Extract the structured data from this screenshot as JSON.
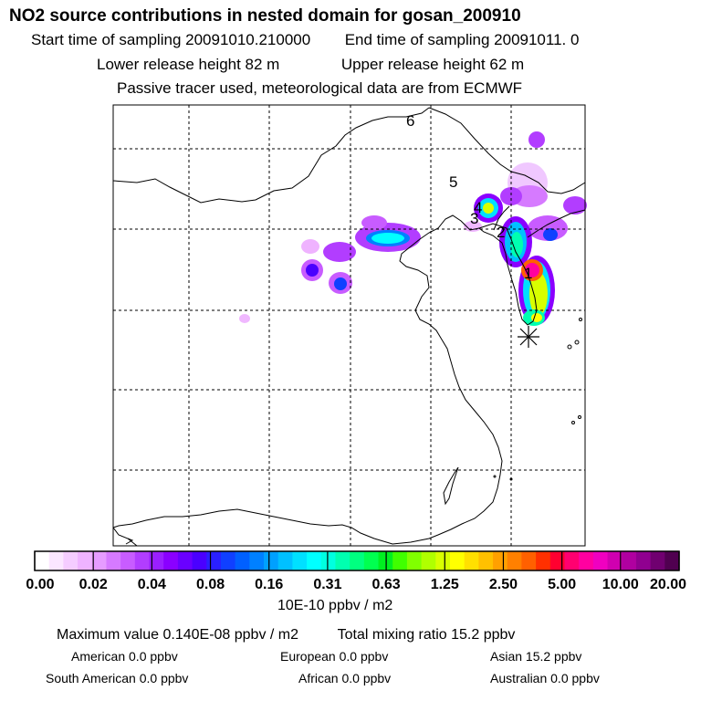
{
  "header": {
    "title": "NO2 source contributions in nested domain for gosan_200910",
    "start_label": "Start time of sampling 20091010.210000",
    "end_label": "End time of sampling 20091011.     0",
    "lower_release": "Lower release height   82 m",
    "upper_release": "Upper release height   62 m",
    "tracer_note": "Passive tracer used, meteorological data are from ECMWF"
  },
  "chart_data": {
    "type": "heatmap",
    "title": "NO2 source contributions in nested domain for gosan_200910",
    "colorbar": {
      "tick_labels": [
        "0.00",
        "0.02",
        "0.04",
        "0.08",
        "0.16",
        "0.31",
        "0.63",
        "1.25",
        "2.50",
        "5.00",
        "10.00",
        "20.00"
      ],
      "colors": [
        "#ffffff",
        "#fbe6ff",
        "#f5ccff",
        "#efb3ff",
        "#e69cff",
        "#d67aff",
        "#c85cff",
        "#b23dff",
        "#9a1fff",
        "#8a00ff",
        "#6a00ff",
        "#4a00ff",
        "#2a20ff",
        "#1040ff",
        "#0060ff",
        "#0080ff",
        "#00a0ff",
        "#00c0ff",
        "#00e0ff",
        "#00ffff",
        "#00ffe0",
        "#00ffb0",
        "#00ff80",
        "#00ff50",
        "#00f020",
        "#40ff00",
        "#80ff00",
        "#b0ff00",
        "#d8ff00",
        "#ffff00",
        "#ffe000",
        "#ffc000",
        "#ffa000",
        "#ff8000",
        "#ff6000",
        "#ff3000",
        "#ff0030",
        "#ff0070",
        "#ff00a0",
        "#f000c0",
        "#d000b0",
        "#b000a0",
        "#900090",
        "#700070",
        "#500050"
      ],
      "units": "10E-10 ppbv / m2"
    },
    "site_labels": [
      "1",
      "2",
      "3",
      "4",
      "5",
      "6"
    ],
    "receptor": "gosan"
  },
  "summary": {
    "max_value": "Maximum value  0.140E-08 ppbv / m2",
    "total_mixing": "Total mixing ratio       15.2 ppbv",
    "american": "American         0.0 ppbv",
    "european": "European        0.0 ppbv",
    "asian": "Asian      15.2 ppbv",
    "south_american": "South American         0.0 ppbv",
    "african": "African        0.0 ppbv",
    "australian": "Australian         0.0 ppbv"
  },
  "colors": {
    "grid": "#000000",
    "background": "#ffffff"
  }
}
